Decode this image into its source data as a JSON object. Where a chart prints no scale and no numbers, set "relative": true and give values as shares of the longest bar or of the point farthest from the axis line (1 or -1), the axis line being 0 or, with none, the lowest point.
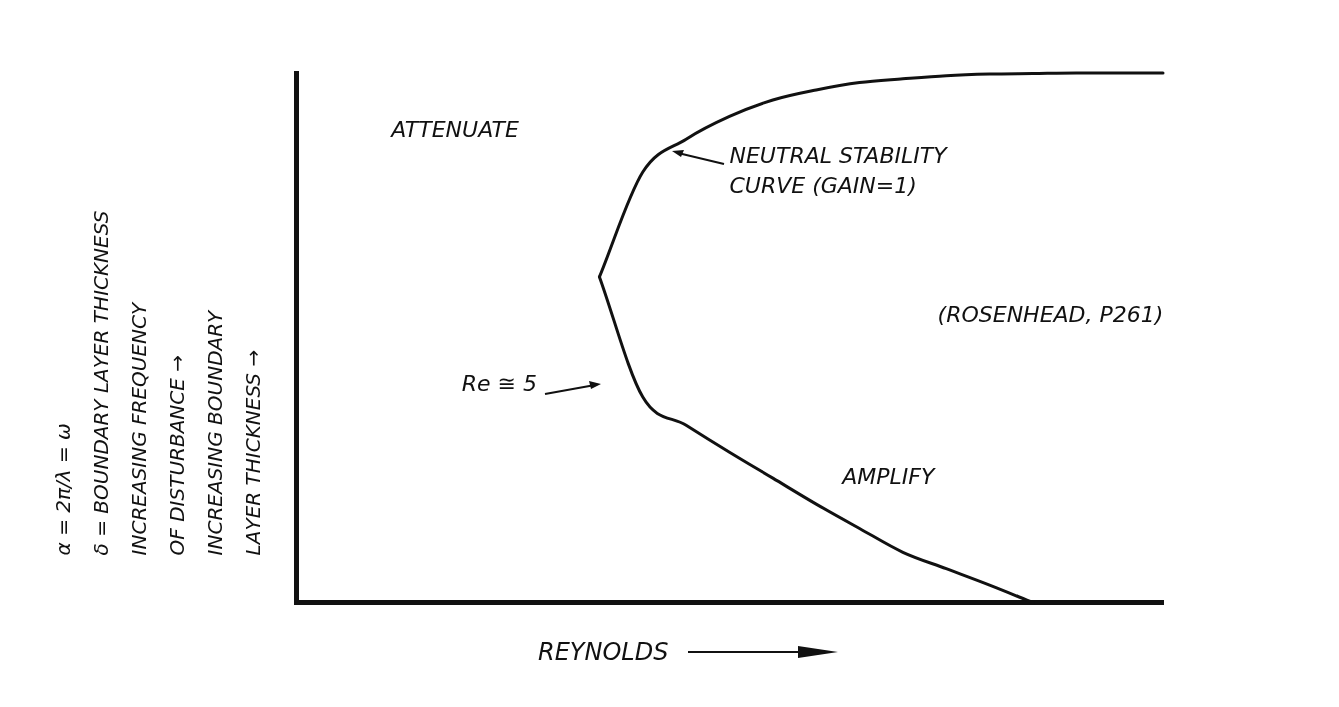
{
  "chart_data": {
    "type": "line",
    "relative": true,
    "xlabel": "REYNOLDS",
    "ylabel": "α = 2π/λ = ω\nδ = BOUNDARY LAYER THICKNESS\nINCREASING FREQUENCY\nOF DISTURBANCE →\nINCREASING BOUNDARY\nLAYER THICKNESS →",
    "grid": false,
    "legend": false,
    "marker": "none",
    "line_style": "solid",
    "categories": [
      null,
      null,
      null,
      null,
      null,
      null,
      null,
      null,
      null,
      null,
      null,
      null,
      null,
      null,
      null,
      null,
      null,
      null,
      null,
      null,
      null
    ],
    "series": [
      {
        "color": "#111111",
        "values": [
          null,
          null,
          null,
          null,
          null,
          null,
          null,
          0.615,
          0.813,
          0.875,
          0.918,
          0.949,
          0.968,
          0.982,
          0.989,
          0.995,
          0.998,
          0.999,
          1,
          1,
          1
        ]
      },
      {
        "color": "#111111",
        "values": [
          null,
          null,
          null,
          null,
          null,
          null,
          null,
          0.615,
          0.388,
          0.335,
          0.284,
          0.235,
          0.186,
          0.14,
          0.095,
          0.064,
          0.033,
          0,
          null,
          null,
          null
        ]
      }
    ],
    "annotations": [
      "ATTENUATE",
      "NEUTRAL STABILITY CURVE (GAIN=1)",
      "Re ≅ 5",
      "(ROSENHEAD, P261)",
      "AMPLIFY"
    ]
  }
}
